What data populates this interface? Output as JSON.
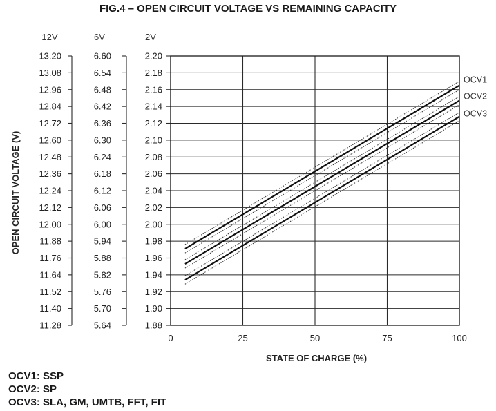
{
  "chart_data": {
    "type": "line",
    "title": "FIG.4 – OPEN CIRCUIT VOLTAGE VS REMAINING CAPACITY",
    "xlabel": "STATE OF CHARGE (%)",
    "ylabel": "OPEN CIRCUIT VOLTAGE (V)",
    "xlim": [
      0,
      100
    ],
    "xticks": [
      "0",
      "25",
      "50",
      "75",
      "100"
    ],
    "ylim": [
      1.88,
      2.2
    ],
    "y_axes": [
      {
        "header": "12V",
        "ticks": [
          "13.20",
          "13.08",
          "12.96",
          "12.84",
          "12.72",
          "12.60",
          "12.48",
          "12.36",
          "12.24",
          "12.12",
          "12.00",
          "11.88",
          "11.76",
          "11.64",
          "11.52",
          "11.40",
          "11.28"
        ]
      },
      {
        "header": "6V",
        "ticks": [
          "6.60",
          "6.54",
          "6.48",
          "6.42",
          "6.36",
          "6.30",
          "6.24",
          "6.18",
          "6.12",
          "6.06",
          "6.00",
          "5.94",
          "5.88",
          "5.82",
          "5.76",
          "5.70",
          "5.64"
        ]
      },
      {
        "header": "2V",
        "ticks": [
          "2.20",
          "2.18",
          "2.16",
          "2.14",
          "2.12",
          "2.10",
          "2.08",
          "2.06",
          "2.04",
          "2.02",
          "2.00",
          "1.98",
          "1.96",
          "1.94",
          "1.92",
          "1.90",
          "1.88"
        ]
      }
    ],
    "grid": true,
    "series": [
      {
        "name": "OCV1",
        "x": [
          5,
          100
        ],
        "y": [
          1.971,
          2.165
        ],
        "band": 0.005
      },
      {
        "name": "OCV2",
        "x": [
          5,
          100
        ],
        "y": [
          1.953,
          2.147
        ],
        "band": 0.005
      },
      {
        "name": "OCV3",
        "x": [
          5,
          100
        ],
        "y": [
          1.934,
          2.128
        ],
        "band": 0.005
      }
    ],
    "notes": [
      "OCV1: SSP",
      "OCV2: SP",
      "OCV3: SLA, GM, UMTB, FFT, FIT"
    ]
  }
}
